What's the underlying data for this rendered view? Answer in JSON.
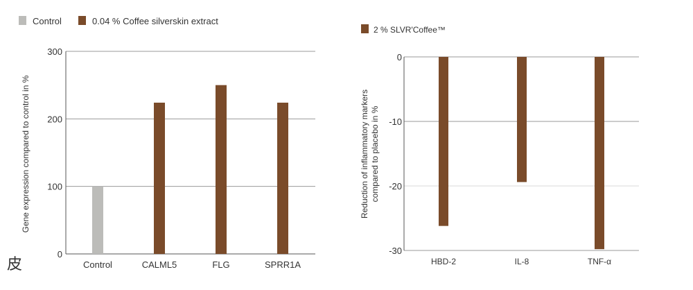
{
  "colors": {
    "control": "#bcbcb9",
    "coffee": "#7a4b2a",
    "grid": "#9a9a9a",
    "axis": "#555555",
    "text": "#333333"
  },
  "side_glyph": "皮",
  "chart_data": [
    {
      "type": "bar",
      "legend": [
        {
          "label": "Control",
          "color": "#bcbcb9"
        },
        {
          "label": "0.04 % Coffee silverskin extract",
          "color": "#7a4b2a"
        }
      ],
      "categories": [
        "Control",
        "CALML5",
        "FLG",
        "SPRR1A"
      ],
      "values": [
        100,
        224,
        250,
        224
      ],
      "bar_series": [
        "control",
        "coffee",
        "coffee",
        "coffee"
      ],
      "ylabel": "Gene expression compared to control in %",
      "xlabel": "",
      "ylim": [
        0,
        300
      ],
      "yticks": [
        0,
        100,
        200,
        300
      ],
      "grid": true,
      "legend_position": "top-left"
    },
    {
      "type": "bar",
      "legend": [
        {
          "label": "2 % SLVR'Coffee™",
          "color": "#7a4b2a"
        }
      ],
      "categories": [
        "HBD-2",
        "IL-8",
        "TNF-α"
      ],
      "values": [
        -26.2,
        -19.4,
        -29.8
      ],
      "ylabel": "Reduction of inflammatory markers compared to placebo in %",
      "xlabel": "",
      "ylim": [
        -30,
        0
      ],
      "yticks": [
        0,
        -10,
        -20,
        -30
      ],
      "grid": true,
      "legend_position": "top-left"
    }
  ]
}
